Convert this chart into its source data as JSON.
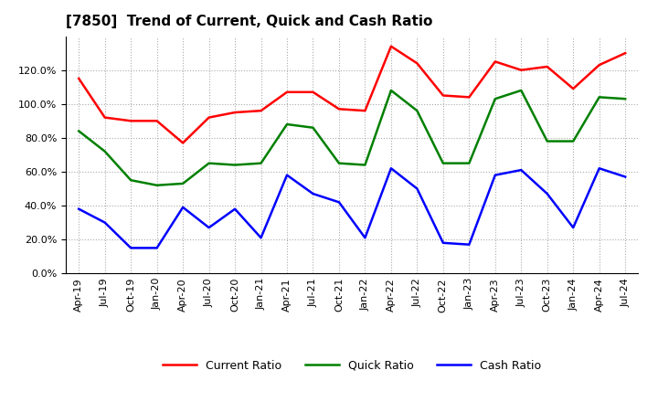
{
  "title": "[7850]  Trend of Current, Quick and Cash Ratio",
  "labels": [
    "Apr-19",
    "Jul-19",
    "Oct-19",
    "Jan-20",
    "Apr-20",
    "Jul-20",
    "Oct-20",
    "Jan-21",
    "Apr-21",
    "Jul-21",
    "Oct-21",
    "Jan-22",
    "Apr-22",
    "Jul-22",
    "Oct-22",
    "Jan-23",
    "Apr-23",
    "Jul-23",
    "Oct-23",
    "Jan-24",
    "Apr-24",
    "Jul-24"
  ],
  "current_ratio": [
    115,
    92,
    90,
    90,
    77,
    92,
    95,
    96,
    107,
    107,
    97,
    96,
    134,
    124,
    105,
    104,
    125,
    120,
    122,
    109,
    123,
    130
  ],
  "quick_ratio": [
    84,
    72,
    55,
    52,
    53,
    65,
    64,
    65,
    88,
    86,
    65,
    64,
    108,
    96,
    65,
    65,
    103,
    108,
    78,
    78,
    104,
    103
  ],
  "cash_ratio": [
    38,
    30,
    15,
    15,
    39,
    27,
    38,
    21,
    58,
    47,
    42,
    21,
    62,
    50,
    18,
    17,
    58,
    61,
    47,
    27,
    62,
    57
  ],
  "current_color": "#FF0000",
  "quick_color": "#008000",
  "cash_color": "#0000FF",
  "ylim": [
    0,
    140
  ],
  "yticks": [
    0,
    20,
    40,
    60,
    80,
    100,
    120
  ],
  "background_color": "#ffffff",
  "grid_color": "#aaaaaa",
  "title_fontsize": 11,
  "tick_fontsize": 8,
  "legend_fontsize": 9,
  "linewidth": 1.8
}
